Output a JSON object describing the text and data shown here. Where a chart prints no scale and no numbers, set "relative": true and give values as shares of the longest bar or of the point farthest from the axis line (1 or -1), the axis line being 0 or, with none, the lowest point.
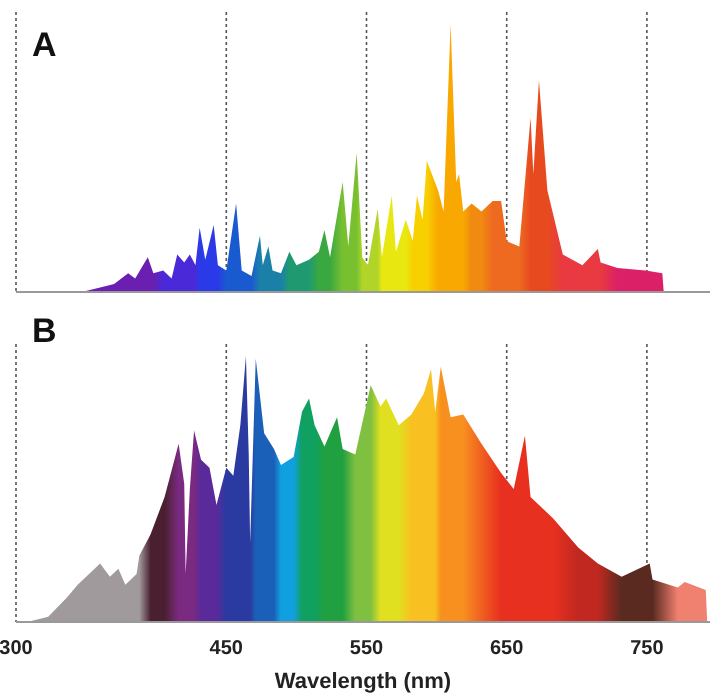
{
  "chart_data": [
    {
      "type": "area",
      "title": "A",
      "relative": true,
      "xlim": [
        300,
        795
      ],
      "xticks": [
        300,
        450,
        550,
        650,
        750
      ],
      "grid": "x",
      "tick_labels": false,
      "series": [
        {
          "x": [
            347,
            370,
            380,
            385,
            394,
            398,
            405,
            411,
            415,
            420,
            424,
            428,
            431,
            435,
            441,
            444,
            450,
            457,
            461,
            468,
            474,
            476,
            480,
            483,
            489,
            495,
            500,
            509,
            516,
            520,
            524,
            533,
            537,
            543,
            547,
            551,
            558,
            561,
            568,
            571,
            578,
            583,
            586,
            590,
            593,
            601,
            605,
            610,
            614,
            616,
            619,
            625,
            632,
            640,
            646,
            650,
            659,
            667,
            669,
            673,
            679,
            690,
            704,
            715,
            717,
            729,
            749,
            761,
            762
          ],
          "values": [
            0,
            0.03,
            0.07,
            0.05,
            0.13,
            0.07,
            0.08,
            0.05,
            0.14,
            0.11,
            0.14,
            0.1,
            0.24,
            0.12,
            0.25,
            0.1,
            0.08,
            0.33,
            0.08,
            0.06,
            0.21,
            0.1,
            0.17,
            0.08,
            0.07,
            0.15,
            0.1,
            0.12,
            0.15,
            0.23,
            0.13,
            0.41,
            0.17,
            0.52,
            0.13,
            0.1,
            0.31,
            0.13,
            0.36,
            0.15,
            0.27,
            0.19,
            0.36,
            0.27,
            0.49,
            0.38,
            0.3,
            1,
            0.41,
            0.44,
            0.3,
            0.33,
            0.3,
            0.34,
            0.34,
            0.19,
            0.17,
            0.65,
            0.44,
            0.79,
            0.38,
            0.14,
            0.1,
            0.16,
            0.11,
            0.09,
            0.08,
            0.07,
            0
          ],
          "colors": [
            "#6a1fb0",
            "#6a1fb0",
            "#6a1fb0",
            "#6a1fb0",
            "#6a1fb0",
            "#6a1fb0",
            "#4a2ad8",
            "#4a2ad8",
            "#4a2ad8",
            "#4a2ad8",
            "#4a2ad8",
            "#4a2ad8",
            "#2a3ae8",
            "#2a3ae8",
            "#2a3ae8",
            "#2a3ae8",
            "#1a5ad0",
            "#1a5ad0",
            "#1a5ad0",
            "#1a5ad0",
            "#1a80a8",
            "#1a80a8",
            "#1a80a8",
            "#1a80a8",
            "#1a80a8",
            "#1f9a70",
            "#1f9a70",
            "#1f9a70",
            "#3aa840",
            "#3aa840",
            "#3aa840",
            "#78c030",
            "#78c030",
            "#78c030",
            "#b0d428",
            "#b0d428",
            "#b0d428",
            "#e8e810",
            "#e8e810",
            "#e8e810",
            "#e8e810",
            "#f8d000",
            "#f8d000",
            "#f8d000",
            "#f8d000",
            "#f8a800",
            "#f8a800",
            "#f8a800",
            "#f8a800",
            "#f8a800",
            "#f8a800",
            "#f08a10",
            "#f08a10",
            "#ee6a20",
            "#ee6a20",
            "#ee6a20",
            "#ee6a20",
            "#e84a20",
            "#e84a20",
            "#e84a20",
            "#e84a20",
            "#e83a40",
            "#e83a40",
            "#e83a40",
            "#e83a40",
            "#dc2068",
            "#dc2068",
            "#dc2068",
            "#dc2068"
          ]
        }
      ]
    },
    {
      "type": "area",
      "title": "B",
      "relative": true,
      "xlim": [
        300,
        795
      ],
      "xticks": [
        300,
        450,
        550,
        650,
        750
      ],
      "grid": "x",
      "xlabel": "Wavelength (nm)",
      "series": [
        {
          "x": [
            308,
            323,
            336,
            344,
            360,
            367,
            373,
            378,
            386,
            388,
            396,
            406,
            416,
            420,
            421,
            424,
            427,
            432,
            438,
            443,
            450,
            455,
            460,
            464,
            466,
            467,
            471,
            477,
            484,
            489,
            498,
            504,
            509,
            513,
            520,
            529,
            533,
            542,
            553,
            560,
            564,
            573,
            582,
            591,
            596,
            599,
            603,
            610,
            619,
            632,
            646,
            655,
            663,
            667,
            683,
            701,
            715,
            732,
            752,
            754,
            772,
            777,
            792,
            793
          ],
          "values": [
            0,
            0.02,
            0.09,
            0.14,
            0.22,
            0.17,
            0.2,
            0.14,
            0.18,
            0.25,
            0.33,
            0.47,
            0.67,
            0.52,
            0.18,
            0.5,
            0.72,
            0.61,
            0.58,
            0.44,
            0.58,
            0.55,
            0.74,
            1,
            0.63,
            0.3,
            0.99,
            0.71,
            0.65,
            0.59,
            0.62,
            0.79,
            0.84,
            0.74,
            0.66,
            0.77,
            0.65,
            0.63,
            0.89,
            0.81,
            0.84,
            0.74,
            0.78,
            0.86,
            0.95,
            0.79,
            0.96,
            0.77,
            0.78,
            0.67,
            0.56,
            0.5,
            0.7,
            0.47,
            0.39,
            0.28,
            0.22,
            0.17,
            0.22,
            0.16,
            0.13,
            0.15,
            0.12,
            0
          ],
          "colors": [
            "#a09a9c",
            "#a09a9c",
            "#a09a9c",
            "#a09a9c",
            "#a09a9c",
            "#a09a9c",
            "#a09a9c",
            "#a09a9c",
            "#a09a9c",
            "#a09a9c",
            "#4a2030",
            "#4a2030",
            "#7a2a80",
            "#7a2a80",
            "#7a2a80",
            "#7a2a80",
            "#7a2a80",
            "#5a2a9a",
            "#5a2a9a",
            "#5a2a9a",
            "#2a3aa0",
            "#2a3aa0",
            "#2a3aa0",
            "#2a3aa0",
            "#2a3aa0",
            "#2a3aa0",
            "#1a60b8",
            "#1a60b8",
            "#1a60b8",
            "#10a0e0",
            "#10a0e0",
            "#10a060",
            "#10a060",
            "#10a060",
            "#20a040",
            "#20a040",
            "#20a040",
            "#80c040",
            "#80c040",
            "#e0e020",
            "#e0e020",
            "#e0e020",
            "#f8c020",
            "#f8c020",
            "#f8c020",
            "#f8c020",
            "#f89020",
            "#f89020",
            "#f89020",
            "#f06020",
            "#e83020",
            "#e83020",
            "#e83020",
            "#e83020",
            "#e83020",
            "#c02820",
            "#c02820",
            "#5a2a20",
            "#5a2a20",
            "#5a2a20",
            "#f08070",
            "#f08070",
            "#f08070",
            "#f08070"
          ]
        }
      ]
    }
  ]
}
